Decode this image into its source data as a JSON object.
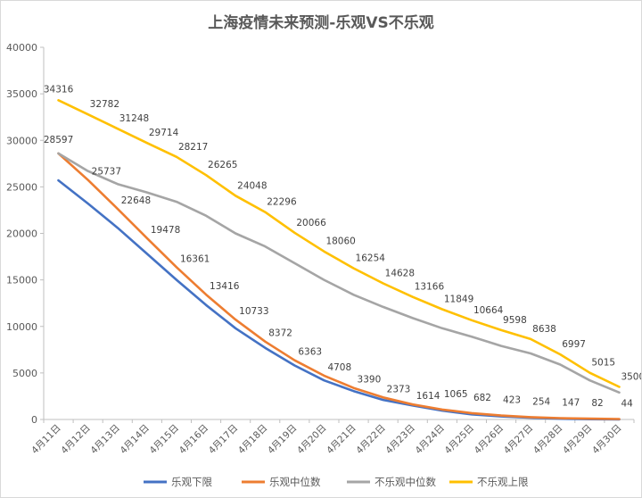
{
  "chart_data": {
    "type": "line",
    "title": "上海疫情未来预测-乐观VS不乐观",
    "ylim": [
      0,
      40000
    ],
    "y_ticks": [
      0,
      5000,
      10000,
      15000,
      20000,
      25000,
      30000,
      35000,
      40000
    ],
    "categories": [
      "4月11日",
      "4月12日",
      "4月13日",
      "4月14日",
      "4月15日",
      "4月16日",
      "4月17日",
      "4月18日",
      "4月19日",
      "4月20日",
      "4月21日",
      "4月22日",
      "4月23日",
      "4月24日",
      "4月25日",
      "4月26日",
      "4月27日",
      "4月28日",
      "4月29日",
      "4月30日"
    ],
    "grid": false,
    "legend_position": "bottom",
    "series": [
      {
        "name": "乐观下限",
        "color": "#4472C4",
        "show_labels": false,
        "values": [
          25700,
          23200,
          20600,
          17800,
          15000,
          12300,
          9800,
          7700,
          5800,
          4200,
          3050,
          2100,
          1500,
          950,
          550,
          330,
          180,
          80,
          30,
          10
        ]
      },
      {
        "name": "乐观中位数",
        "color": "#ED7D31",
        "show_labels": true,
        "values": [
          28597,
          25737,
          22648,
          19478,
          16361,
          13416,
          10733,
          8372,
          6363,
          4708,
          3390,
          2373,
          1614,
          1065,
          682,
          423,
          254,
          147,
          82,
          44
        ]
      },
      {
        "name": "不乐观中位数",
        "color": "#A5A5A5",
        "show_labels": false,
        "values": [
          28597,
          26700,
          25300,
          24400,
          23400,
          21900,
          20000,
          18600,
          16800,
          15000,
          13400,
          12100,
          10900,
          9800,
          8900,
          7900,
          7100,
          5900,
          4200,
          2900
        ]
      },
      {
        "name": "不乐观上限",
        "color": "#FFC000",
        "show_labels": true,
        "values": [
          34316,
          32782,
          31248,
          29714,
          28217,
          26265,
          24048,
          22296,
          20066,
          18060,
          16254,
          14628,
          13166,
          11849,
          10664,
          9598,
          8638,
          6997,
          5015,
          3500
        ]
      }
    ]
  }
}
